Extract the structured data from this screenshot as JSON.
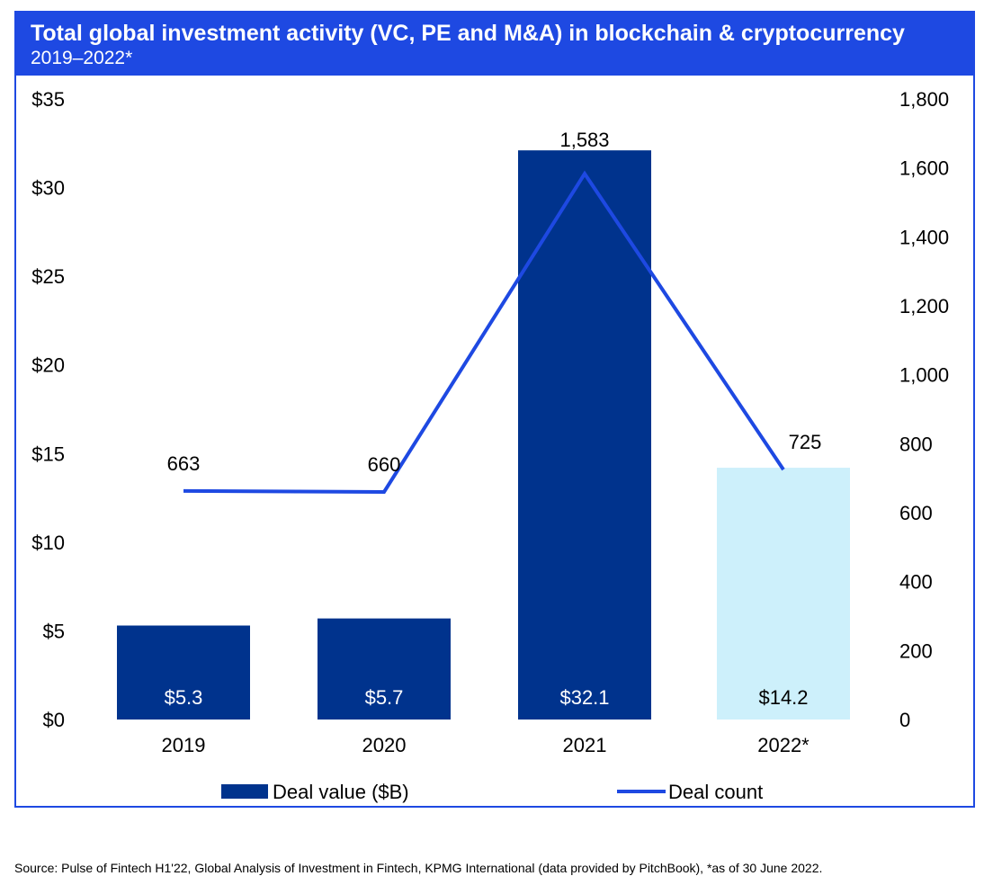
{
  "title": "Total global investment activity (VC, PE and M&A) in blockchain & cryptocurrency",
  "subtitle": "2019–2022*",
  "source": "Source: Pulse of Fintech H1'22, Global Analysis of Investment in Fintech, KPMG International (data provided by PitchBook), *as of 30 June 2022.",
  "colors": {
    "header": "#1e49e2",
    "bar": "#00338d",
    "bar_partial": "#cdf0fb",
    "line": "#1e49e2",
    "bar_label_dark": "#ffffff",
    "bar_label_light": "#000000"
  },
  "chart_data": {
    "type": "bar",
    "categories": [
      "2019",
      "2020",
      "2021",
      "2022*"
    ],
    "series": [
      {
        "name": "Deal value ($B)",
        "type": "bar",
        "axis": "left",
        "values": [
          5.3,
          5.7,
          32.1,
          14.2
        ],
        "labels": [
          "$5.3",
          "$5.7",
          "$32.1",
          "$14.2"
        ]
      },
      {
        "name": "Deal count",
        "type": "line",
        "axis": "right",
        "values": [
          663,
          660,
          1583,
          725
        ],
        "labels": [
          "663",
          "660",
          "1,583",
          "725"
        ]
      }
    ],
    "left_axis": {
      "ylim": [
        0,
        35
      ],
      "ticks": [
        "$0",
        "$5",
        "$10",
        "$15",
        "$20",
        "$25",
        "$30",
        "$35"
      ]
    },
    "right_axis": {
      "ylim": [
        0,
        1800
      ],
      "ticks": [
        "0",
        "200",
        "400",
        "600",
        "800",
        "1,000",
        "1,200",
        "1,400",
        "1,600",
        "1,800"
      ]
    },
    "legend": {
      "position": "bottom",
      "items": [
        "Deal value ($B)",
        "Deal count"
      ]
    },
    "grid": false
  }
}
